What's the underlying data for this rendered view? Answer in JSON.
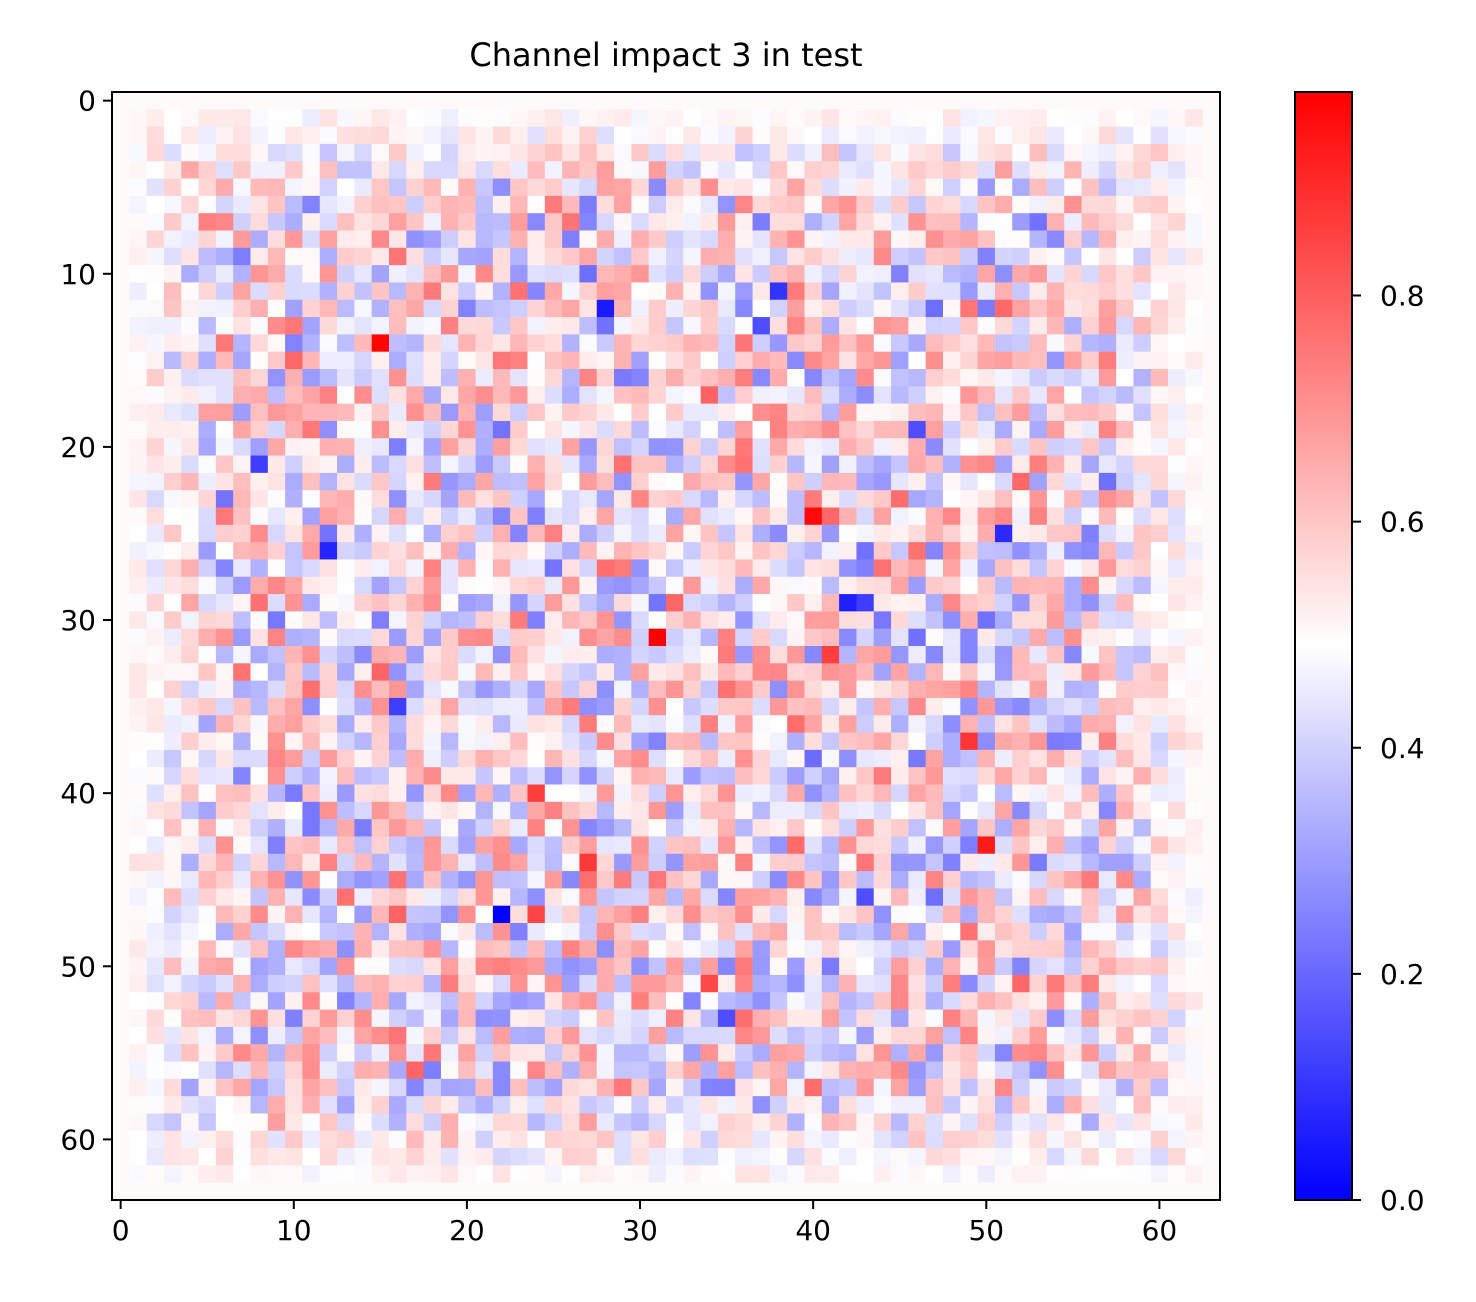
{
  "chart_data": {
    "type": "heatmap",
    "title": "Channel impact 3 in test",
    "xlabel": "",
    "ylabel": "",
    "grid_size": 64,
    "xlim": [
      -0.5,
      63.5
    ],
    "ylim": [
      63.5,
      -0.5
    ],
    "x_ticks": [
      0,
      10,
      20,
      30,
      40,
      50,
      60
    ],
    "y_ticks": [
      0,
      10,
      20,
      30,
      40,
      50,
      60
    ],
    "colormap": "bwr",
    "colormap_colors": [
      "#0000ff",
      "#ffffff",
      "#ff0000"
    ],
    "vmin": 0.0,
    "vmax": 0.98,
    "colorbar_ticks": [
      "0.0",
      "0.2",
      "0.4",
      "0.6",
      "0.8"
    ],
    "colorbar_tick_values": [
      0.0,
      0.2,
      0.4,
      0.6,
      0.8
    ],
    "grid": false,
    "active_region": {
      "rows": [
        1,
        62
      ],
      "cols": [
        1,
        62
      ]
    },
    "edge_value": 0.5,
    "noise_amplitude": 0.2,
    "notable_cells": [
      {
        "row": 31,
        "col": 31,
        "value": 0.98
      },
      {
        "row": 14,
        "col": 15,
        "value": 0.97
      },
      {
        "row": 24,
        "col": 40,
        "value": 0.96
      },
      {
        "row": 43,
        "col": 50,
        "value": 0.93
      },
      {
        "row": 37,
        "col": 49,
        "value": 0.88
      },
      {
        "row": 32,
        "col": 41,
        "value": 0.86
      },
      {
        "row": 47,
        "col": 24,
        "value": 0.85
      },
      {
        "row": 51,
        "col": 34,
        "value": 0.84
      },
      {
        "row": 40,
        "col": 24,
        "value": 0.86
      },
      {
        "row": 44,
        "col": 27,
        "value": 0.87
      },
      {
        "row": 47,
        "col": 22,
        "value": 0.0
      },
      {
        "row": 12,
        "col": 28,
        "value": 0.05
      },
      {
        "row": 25,
        "col": 51,
        "value": 0.08
      },
      {
        "row": 29,
        "col": 42,
        "value": 0.06
      },
      {
        "row": 29,
        "col": 43,
        "value": 0.12
      },
      {
        "row": 26,
        "col": 12,
        "value": 0.07
      },
      {
        "row": 11,
        "col": 38,
        "value": 0.1
      },
      {
        "row": 21,
        "col": 8,
        "value": 0.12
      },
      {
        "row": 35,
        "col": 16,
        "value": 0.12
      },
      {
        "row": 46,
        "col": 43,
        "value": 0.15
      },
      {
        "row": 53,
        "col": 35,
        "value": 0.15
      },
      {
        "row": 13,
        "col": 37,
        "value": 0.15
      },
      {
        "row": 19,
        "col": 46,
        "value": 0.15
      },
      {
        "row": 7,
        "col": 53,
        "value": 0.22
      }
    ]
  }
}
